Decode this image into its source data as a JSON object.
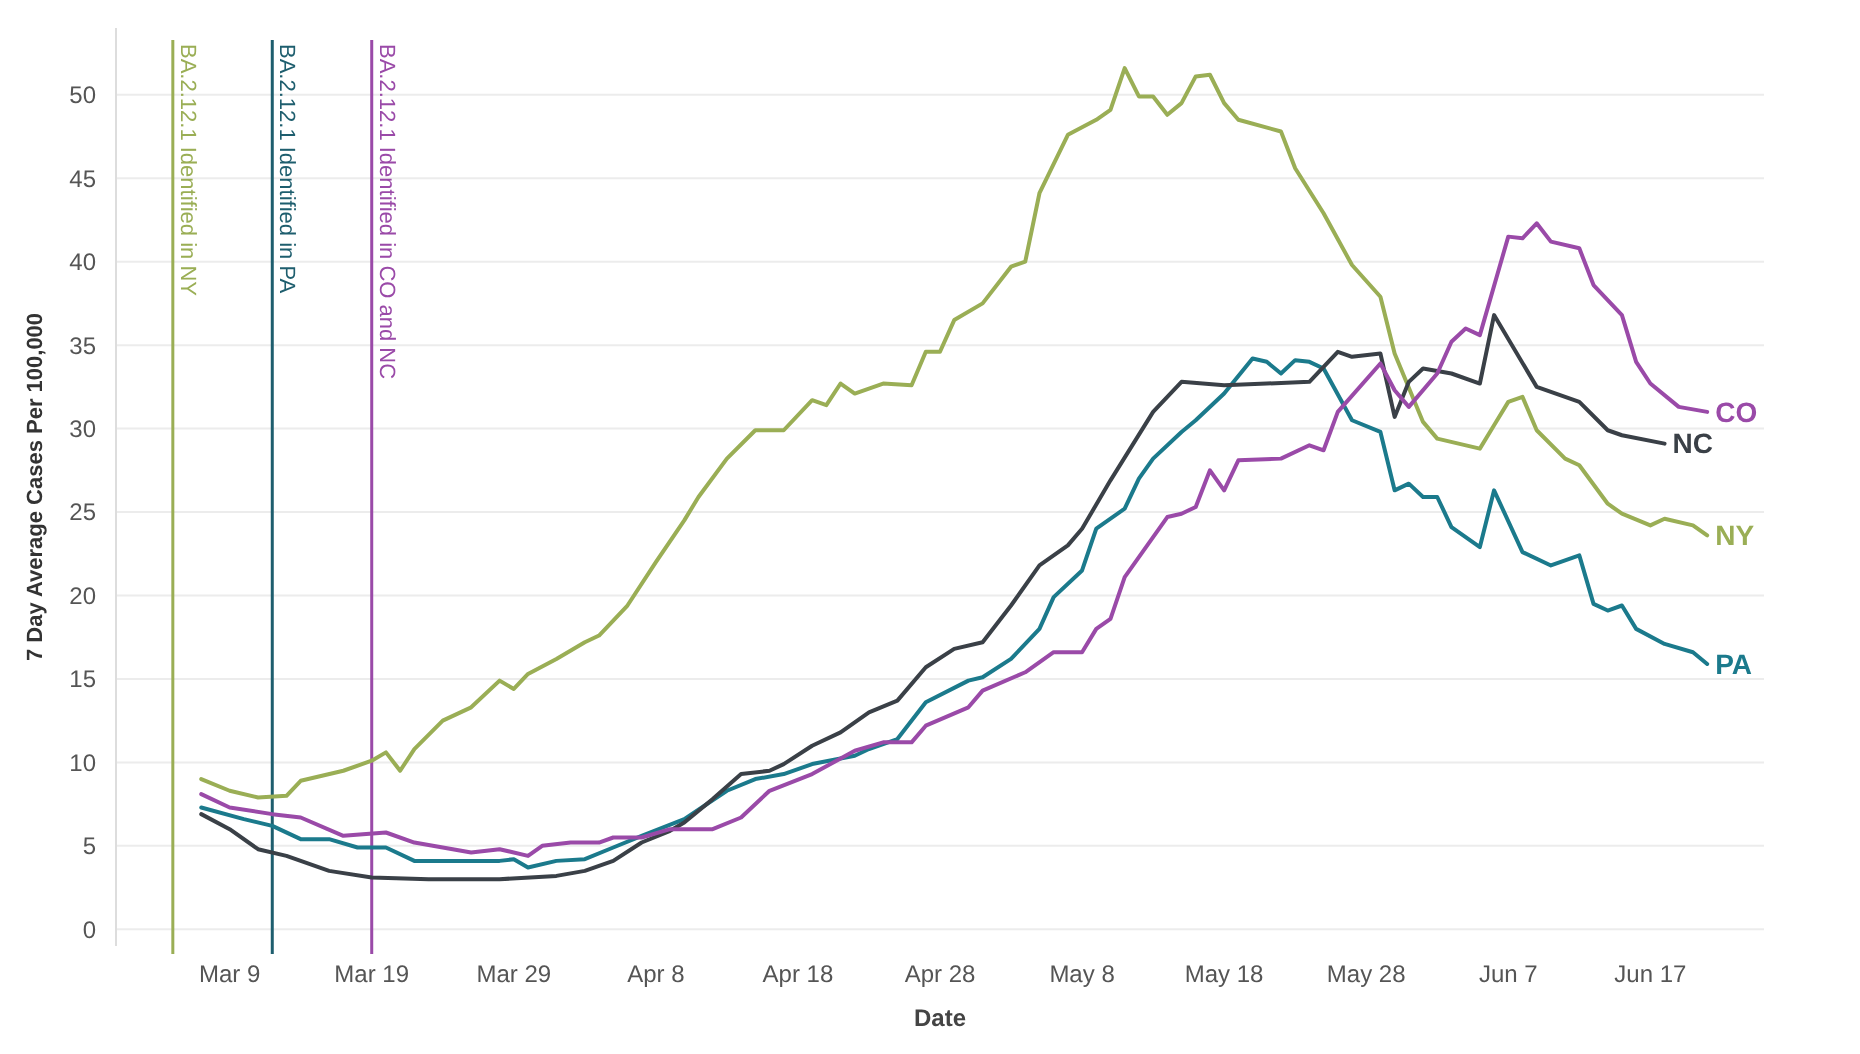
{
  "chart_data": {
    "type": "line",
    "xlabel": "Date",
    "ylabel": "7 Day Average Cases Per 100,000",
    "xlim": [
      "--03-01",
      "--06-25"
    ],
    "ylim": [
      -1,
      54
    ],
    "xticks": [
      {
        "value": "--03-09",
        "label": "Mar 9"
      },
      {
        "value": "--03-19",
        "label": "Mar 19"
      },
      {
        "value": "--03-29",
        "label": "Mar 29"
      },
      {
        "value": "--04-08",
        "label": "Apr 8"
      },
      {
        "value": "--04-18",
        "label": "Apr 18"
      },
      {
        "value": "--04-28",
        "label": "Apr 28"
      },
      {
        "value": "--05-08",
        "label": "May 8"
      },
      {
        "value": "--05-18",
        "label": "May 18"
      },
      {
        "value": "--05-28",
        "label": "May 28"
      },
      {
        "value": "--06-07",
        "label": "Jun 7"
      },
      {
        "value": "--06-17",
        "label": "Jun 17"
      }
    ],
    "yticks": [
      0,
      5,
      10,
      15,
      20,
      25,
      30,
      35,
      40,
      45,
      50
    ],
    "grid": "y",
    "marker": "none",
    "line_style": "solid",
    "ref_lines": [
      {
        "axis": "x",
        "value": "--03-05",
        "label": "BA.2.12.1 Identified in NY",
        "color": "#9aae55"
      },
      {
        "axis": "x",
        "value": "--03-12",
        "label": "BA.2.12.1 Identified in PA",
        "color": "#1e5e6e"
      },
      {
        "axis": "x",
        "value": "--03-19",
        "label": "BA.2.12.1 Identified in CO and NC",
        "color": "#9a4aa8"
      }
    ],
    "series": [
      {
        "name": "NY",
        "color": "#9aae55",
        "x": [
          "--03-07",
          "--03-09",
          "--03-11",
          "--03-13",
          "--03-14",
          "--03-17",
          "--03-19",
          "--03-20",
          "--03-21",
          "--03-22",
          "--03-24",
          "--03-26",
          "--03-28",
          "--03-29",
          "--03-30",
          "--04-01",
          "--04-03",
          "--04-04",
          "--04-06",
          "--04-08",
          "--04-10",
          "--04-11",
          "--04-13",
          "--04-15",
          "--04-17",
          "--04-19",
          "--04-20",
          "--04-21",
          "--04-22",
          "--04-24",
          "--04-26",
          "--04-27",
          "--04-28",
          "--04-29",
          "--05-01",
          "--05-03",
          "--05-04",
          "--05-05",
          "--05-07",
          "--05-09",
          "--05-10",
          "--05-11",
          "--05-12",
          "--05-13",
          "--05-14",
          "--05-15",
          "--05-16",
          "--05-17",
          "--05-18",
          "--05-19",
          "--05-22",
          "--05-23",
          "--05-25",
          "--05-27",
          "--05-29",
          "--05-30",
          "--06-01",
          "--06-02",
          "--06-05",
          "--06-06",
          "--06-07",
          "--06-08",
          "--06-09",
          "--06-11",
          "--06-12",
          "--06-14",
          "--06-15",
          "--06-17",
          "--06-18",
          "--06-20",
          "--06-21"
        ],
        "values": [
          9.0,
          8.3,
          7.9,
          8.0,
          8.9,
          9.5,
          10.1,
          10.6,
          9.5,
          10.8,
          12.5,
          13.3,
          14.9,
          14.4,
          15.3,
          16.2,
          17.2,
          17.6,
          19.4,
          22.0,
          24.5,
          25.9,
          28.2,
          29.9,
          29.9,
          31.7,
          31.4,
          32.7,
          32.1,
          32.7,
          32.6,
          34.6,
          34.6,
          36.5,
          37.5,
          39.7,
          40.0,
          44.1,
          47.6,
          48.5,
          49.1,
          51.6,
          49.9,
          49.9,
          48.8,
          49.5,
          51.1,
          51.2,
          49.5,
          48.5,
          47.8,
          45.6,
          42.9,
          39.8,
          37.9,
          34.5,
          30.4,
          29.4,
          28.8,
          30.2,
          31.6,
          31.9,
          29.9,
          28.2,
          27.8,
          25.5,
          24.9,
          24.2,
          24.6,
          24.2,
          23.6
        ]
      },
      {
        "name": "PA",
        "color": "#1b7a8c",
        "x": [
          "--03-07",
          "--03-10",
          "--03-12",
          "--03-14",
          "--03-16",
          "--03-18",
          "--03-20",
          "--03-22",
          "--03-24",
          "--03-28",
          "--03-29",
          "--03-30",
          "--04-01",
          "--04-03",
          "--04-05",
          "--04-07",
          "--04-10",
          "--04-13",
          "--04-15",
          "--04-17",
          "--04-19",
          "--04-22",
          "--04-23",
          "--04-25",
          "--04-27",
          "--04-30",
          "--05-01",
          "--05-03",
          "--05-05",
          "--05-06",
          "--05-08",
          "--05-09",
          "--05-11",
          "--05-12",
          "--05-13",
          "--05-15",
          "--05-16",
          "--05-18",
          "--05-20",
          "--05-21",
          "--05-22",
          "--05-23",
          "--05-24",
          "--05-25",
          "--05-27",
          "--05-29",
          "--05-30",
          "--05-31",
          "--06-01",
          "--06-02",
          "--06-03",
          "--06-05",
          "--06-06",
          "--06-08",
          "--06-10",
          "--06-12",
          "--06-13",
          "--06-14",
          "--06-15",
          "--06-16",
          "--06-18",
          "--06-20",
          "--06-21"
        ],
        "values": [
          7.3,
          6.6,
          6.2,
          5.4,
          5.4,
          4.9,
          4.9,
          4.1,
          4.1,
          4.1,
          4.2,
          3.7,
          4.1,
          4.2,
          4.9,
          5.6,
          6.6,
          8.3,
          9.0,
          9.3,
          9.9,
          10.4,
          10.8,
          11.4,
          13.6,
          14.9,
          15.1,
          16.2,
          18.0,
          19.9,
          21.5,
          24.0,
          25.2,
          27.0,
          28.2,
          29.8,
          30.5,
          32.1,
          34.2,
          34.0,
          33.3,
          34.1,
          34.0,
          33.6,
          30.5,
          29.8,
          26.3,
          26.7,
          25.9,
          25.9,
          24.1,
          22.9,
          26.3,
          22.6,
          21.8,
          22.4,
          19.5,
          19.1,
          19.4,
          18.0,
          17.1,
          16.6,
          15.9
        ]
      },
      {
        "name": "NC",
        "color": "#3a4047",
        "x": [
          "--03-07",
          "--03-09",
          "--03-11",
          "--03-13",
          "--03-16",
          "--03-19",
          "--03-23",
          "--03-28",
          "--04-01",
          "--04-03",
          "--04-05",
          "--04-07",
          "--04-09",
          "--04-10",
          "--04-12",
          "--04-14",
          "--04-16",
          "--04-17",
          "--04-19",
          "--04-21",
          "--04-23",
          "--04-25",
          "--04-27",
          "--04-29",
          "--05-01",
          "--05-03",
          "--05-05",
          "--05-07",
          "--05-08",
          "--05-10",
          "--05-13",
          "--05-15",
          "--05-18",
          "--05-21",
          "--05-24",
          "--05-26",
          "--05-27",
          "--05-29",
          "--05-30",
          "--05-31",
          "--06-01",
          "--06-03",
          "--06-05",
          "--06-06",
          "--06-09",
          "--06-12",
          "--06-14",
          "--06-15",
          "--06-18"
        ],
        "values": [
          6.9,
          6.0,
          4.8,
          4.4,
          3.5,
          3.1,
          3.0,
          3.0,
          3.2,
          3.5,
          4.1,
          5.2,
          5.9,
          6.4,
          7.8,
          9.3,
          9.5,
          9.9,
          11.0,
          11.8,
          13.0,
          13.7,
          15.7,
          16.8,
          17.2,
          19.4,
          21.8,
          23.0,
          24.0,
          26.9,
          31.0,
          32.8,
          32.6,
          32.7,
          32.8,
          34.6,
          34.3,
          34.5,
          30.7,
          32.8,
          33.6,
          33.3,
          32.7,
          36.8,
          32.5,
          31.6,
          29.9,
          29.6,
          29.1
        ]
      },
      {
        "name": "CO",
        "color": "#9a4aa8",
        "x": [
          "--03-07",
          "--03-09",
          "--03-12",
          "--03-14",
          "--03-17",
          "--03-20",
          "--03-22",
          "--03-26",
          "--03-28",
          "--03-30",
          "--03-31",
          "--04-02",
          "--04-04",
          "--04-05",
          "--04-07",
          "--04-09",
          "--04-12",
          "--04-14",
          "--04-16",
          "--04-19",
          "--04-22",
          "--04-24",
          "--04-26",
          "--04-27",
          "--04-30",
          "--05-01",
          "--05-04",
          "--05-06",
          "--05-08",
          "--05-09",
          "--05-10",
          "--05-11",
          "--05-14",
          "--05-15",
          "--05-16",
          "--05-17",
          "--05-18",
          "--05-19",
          "--05-22",
          "--05-24",
          "--05-25",
          "--05-26",
          "--05-29",
          "--05-30",
          "--05-31",
          "--06-02",
          "--06-03",
          "--06-04",
          "--06-05",
          "--06-07",
          "--06-08",
          "--06-09",
          "--06-10",
          "--06-12",
          "--06-13",
          "--06-15",
          "--06-16",
          "--06-17",
          "--06-19",
          "--06-21"
        ],
        "values": [
          8.1,
          7.3,
          6.9,
          6.7,
          5.6,
          5.8,
          5.2,
          4.6,
          4.8,
          4.4,
          5.0,
          5.2,
          5.2,
          5.5,
          5.5,
          6.0,
          6.0,
          6.7,
          8.3,
          9.3,
          10.7,
          11.2,
          11.2,
          12.2,
          13.3,
          14.3,
          15.4,
          16.6,
          16.6,
          18.0,
          18.6,
          21.1,
          24.7,
          24.9,
          25.3,
          27.5,
          26.3,
          28.1,
          28.2,
          29.0,
          28.7,
          31.0,
          33.9,
          32.3,
          31.3,
          33.3,
          35.2,
          36.0,
          35.6,
          41.5,
          41.4,
          42.3,
          41.2,
          40.8,
          38.6,
          36.8,
          34.0,
          32.7,
          31.3,
          31.0
        ]
      }
    ]
  }
}
